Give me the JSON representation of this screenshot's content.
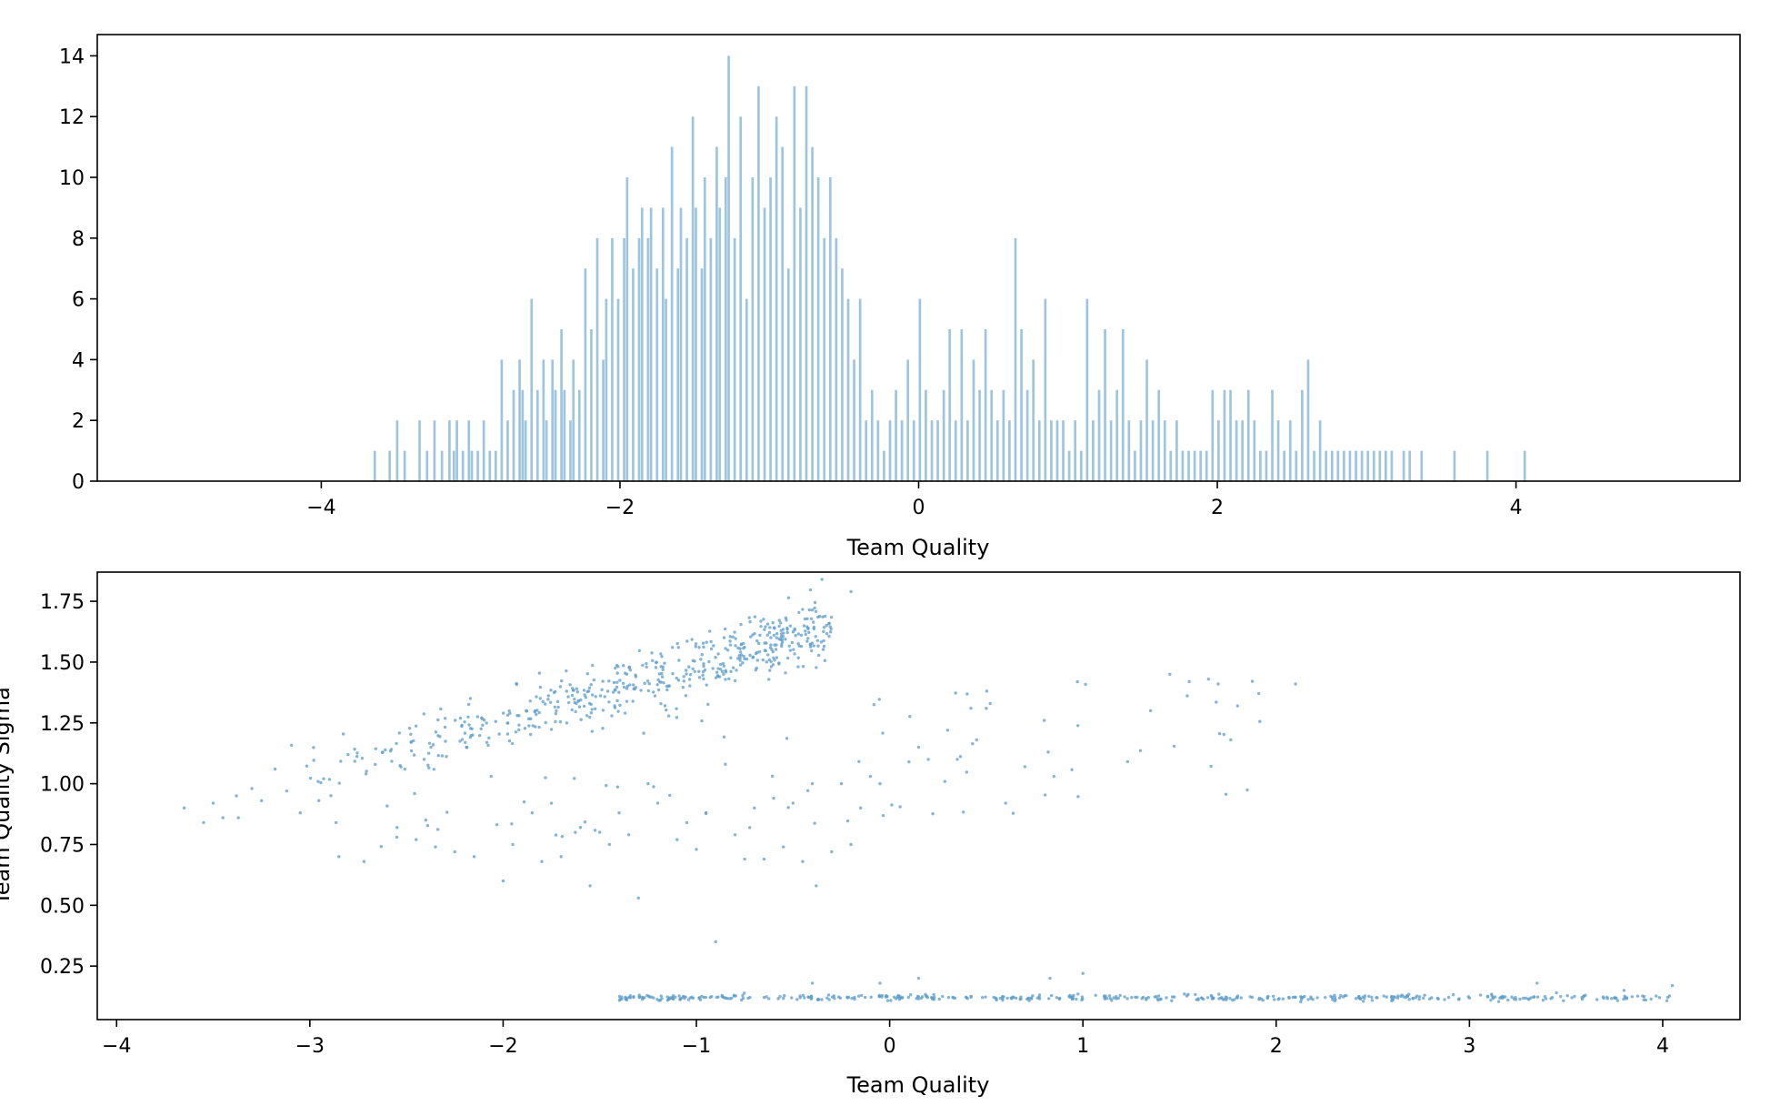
{
  "colors": {
    "bar": "#9ec5df",
    "point": "#5b9ccb",
    "axis": "#000000"
  },
  "chart_data": [
    {
      "type": "bar",
      "subtype": "histogram",
      "title": "",
      "xlabel": "Team Quality",
      "ylabel": "",
      "xlim": [
        -5.5,
        5.5
      ],
      "ylim": [
        0,
        14.7
      ],
      "xticks": [
        -4,
        -2,
        0,
        2,
        4
      ],
      "xtick_labels": [
        "−4",
        "−2",
        "0",
        "2",
        "4"
      ],
      "yticks": [
        0,
        2,
        4,
        6,
        8,
        10,
        12,
        14
      ],
      "ytick_labels": [
        "0",
        "2",
        "4",
        "6",
        "8",
        "10",
        "12",
        "14"
      ],
      "bin_start": -5.0,
      "bin_width": 0.02,
      "nonzero_bins": [
        [
          -3.65,
          1
        ],
        [
          -3.55,
          1
        ],
        [
          -3.5,
          2
        ],
        [
          -3.45,
          1
        ],
        [
          -3.35,
          2
        ],
        [
          -3.3,
          1
        ],
        [
          -3.25,
          2
        ],
        [
          -3.2,
          1
        ],
        [
          -3.15,
          2
        ],
        [
          -3.12,
          1
        ],
        [
          -3.1,
          2
        ],
        [
          -3.06,
          1
        ],
        [
          -3.02,
          2
        ],
        [
          -3.0,
          1
        ],
        [
          -2.96,
          1
        ],
        [
          -2.92,
          2
        ],
        [
          -2.88,
          1
        ],
        [
          -2.84,
          1
        ],
        [
          -2.8,
          4
        ],
        [
          -2.76,
          2
        ],
        [
          -2.72,
          3
        ],
        [
          -2.68,
          4
        ],
        [
          -2.66,
          3
        ],
        [
          -2.64,
          2
        ],
        [
          -2.6,
          6
        ],
        [
          -2.56,
          3
        ],
        [
          -2.52,
          4
        ],
        [
          -2.5,
          2
        ],
        [
          -2.46,
          4
        ],
        [
          -2.44,
          3
        ],
        [
          -2.4,
          5
        ],
        [
          -2.38,
          3
        ],
        [
          -2.34,
          2
        ],
        [
          -2.32,
          4
        ],
        [
          -2.28,
          3
        ],
        [
          -2.24,
          7
        ],
        [
          -2.2,
          5
        ],
        [
          -2.16,
          8
        ],
        [
          -2.12,
          4
        ],
        [
          -2.1,
          6
        ],
        [
          -2.06,
          8
        ],
        [
          -2.02,
          6
        ],
        [
          -1.98,
          8
        ],
        [
          -1.96,
          10
        ],
        [
          -1.92,
          7
        ],
        [
          -1.88,
          8
        ],
        [
          -1.86,
          9
        ],
        [
          -1.82,
          8
        ],
        [
          -1.8,
          9
        ],
        [
          -1.76,
          7
        ],
        [
          -1.72,
          9
        ],
        [
          -1.7,
          6
        ],
        [
          -1.66,
          11
        ],
        [
          -1.62,
          7
        ],
        [
          -1.6,
          9
        ],
        [
          -1.56,
          8
        ],
        [
          -1.52,
          12
        ],
        [
          -1.5,
          9
        ],
        [
          -1.46,
          7
        ],
        [
          -1.44,
          10
        ],
        [
          -1.4,
          8
        ],
        [
          -1.36,
          11
        ],
        [
          -1.34,
          9
        ],
        [
          -1.3,
          10
        ],
        [
          -1.28,
          14
        ],
        [
          -1.24,
          8
        ],
        [
          -1.2,
          12
        ],
        [
          -1.16,
          6
        ],
        [
          -1.12,
          10
        ],
        [
          -1.08,
          13
        ],
        [
          -1.04,
          9
        ],
        [
          -1.0,
          10
        ],
        [
          -0.96,
          12
        ],
        [
          -0.92,
          11
        ],
        [
          -0.88,
          7
        ],
        [
          -0.84,
          13
        ],
        [
          -0.8,
          9
        ],
        [
          -0.76,
          13
        ],
        [
          -0.72,
          11
        ],
        [
          -0.68,
          10
        ],
        [
          -0.64,
          8
        ],
        [
          -0.6,
          10
        ],
        [
          -0.56,
          8
        ],
        [
          -0.52,
          7
        ],
        [
          -0.48,
          6
        ],
        [
          -0.44,
          4
        ],
        [
          -0.4,
          6
        ],
        [
          -0.36,
          2
        ],
        [
          -0.32,
          3
        ],
        [
          -0.28,
          2
        ],
        [
          -0.24,
          1
        ],
        [
          -0.2,
          2
        ],
        [
          -0.16,
          3
        ],
        [
          -0.12,
          2
        ],
        [
          -0.08,
          4
        ],
        [
          -0.04,
          2
        ],
        [
          0.0,
          6
        ],
        [
          0.04,
          3
        ],
        [
          0.08,
          2
        ],
        [
          0.12,
          2
        ],
        [
          0.16,
          3
        ],
        [
          0.2,
          5
        ],
        [
          0.24,
          2
        ],
        [
          0.28,
          5
        ],
        [
          0.32,
          2
        ],
        [
          0.36,
          4
        ],
        [
          0.4,
          3
        ],
        [
          0.44,
          5
        ],
        [
          0.48,
          3
        ],
        [
          0.52,
          2
        ],
        [
          0.56,
          3
        ],
        [
          0.6,
          2
        ],
        [
          0.64,
          8
        ],
        [
          0.68,
          5
        ],
        [
          0.72,
          3
        ],
        [
          0.76,
          4
        ],
        [
          0.8,
          2
        ],
        [
          0.84,
          6
        ],
        [
          0.88,
          2
        ],
        [
          0.92,
          2
        ],
        [
          0.96,
          2
        ],
        [
          1.0,
          1
        ],
        [
          1.04,
          2
        ],
        [
          1.08,
          1
        ],
        [
          1.12,
          6
        ],
        [
          1.16,
          2
        ],
        [
          1.2,
          3
        ],
        [
          1.24,
          5
        ],
        [
          1.28,
          2
        ],
        [
          1.32,
          3
        ],
        [
          1.36,
          5
        ],
        [
          1.4,
          2
        ],
        [
          1.44,
          1
        ],
        [
          1.48,
          2
        ],
        [
          1.52,
          4
        ],
        [
          1.56,
          2
        ],
        [
          1.6,
          3
        ],
        [
          1.64,
          2
        ],
        [
          1.68,
          1
        ],
        [
          1.72,
          2
        ],
        [
          1.76,
          1
        ],
        [
          1.8,
          1
        ],
        [
          1.84,
          1
        ],
        [
          1.88,
          1
        ],
        [
          1.92,
          1
        ],
        [
          1.96,
          3
        ],
        [
          2.0,
          2
        ],
        [
          2.04,
          3
        ],
        [
          2.08,
          3
        ],
        [
          2.12,
          2
        ],
        [
          2.16,
          2
        ],
        [
          2.2,
          3
        ],
        [
          2.24,
          2
        ],
        [
          2.28,
          1
        ],
        [
          2.32,
          1
        ],
        [
          2.36,
          3
        ],
        [
          2.4,
          2
        ],
        [
          2.44,
          1
        ],
        [
          2.48,
          2
        ],
        [
          2.52,
          1
        ],
        [
          2.56,
          3
        ],
        [
          2.6,
          4
        ],
        [
          2.64,
          1
        ],
        [
          2.68,
          2
        ],
        [
          2.72,
          1
        ],
        [
          2.76,
          1
        ],
        [
          2.8,
          1
        ],
        [
          2.84,
          1
        ],
        [
          2.88,
          1
        ],
        [
          2.92,
          1
        ],
        [
          2.96,
          1
        ],
        [
          3.0,
          1
        ],
        [
          3.04,
          1
        ],
        [
          3.08,
          1
        ],
        [
          3.12,
          1
        ],
        [
          3.16,
          1
        ],
        [
          3.24,
          1
        ],
        [
          3.28,
          1
        ],
        [
          3.36,
          1
        ],
        [
          3.58,
          1
        ],
        [
          3.8,
          1
        ],
        [
          4.05,
          1
        ]
      ]
    },
    {
      "type": "scatter",
      "title": "",
      "xlabel": "Team Quality",
      "ylabel": "Team Quality Sigma",
      "xlim": [
        -4.1,
        4.4
      ],
      "ylim": [
        0.03,
        1.87
      ],
      "xticks": [
        -4,
        -3,
        -2,
        -1,
        0,
        1,
        2,
        3,
        4
      ],
      "xtick_labels": [
        "−4",
        "−3",
        "−2",
        "−1",
        "0",
        "1",
        "2",
        "3",
        "4"
      ],
      "yticks": [
        0.25,
        0.5,
        0.75,
        1.0,
        1.25,
        1.5,
        1.75
      ],
      "ytick_labels": [
        "0.25",
        "0.50",
        "0.75",
        "1.00",
        "1.25",
        "1.50",
        "1.75"
      ],
      "clusters": [
        {
          "name": "upper band",
          "x_range": [
            -3.5,
            -0.3
          ],
          "y_at_start": 0.9,
          "y_at_end": 1.65,
          "spread": 0.06,
          "count": 520
        },
        {
          "name": "middle scatter",
          "x_range": [
            -2.9,
            2.1
          ],
          "y_range": [
            0.55,
            1.45
          ],
          "count": 90
        },
        {
          "name": "lower band",
          "x_range": [
            -1.4,
            4.05
          ],
          "y_center": 0.12,
          "spread": 0.006,
          "count": 460
        }
      ],
      "points": [
        [
          -3.65,
          0.9
        ],
        [
          -3.55,
          0.84
        ],
        [
          -3.5,
          0.92
        ],
        [
          -3.45,
          0.86
        ],
        [
          -3.38,
          0.95
        ],
        [
          -3.37,
          0.86
        ],
        [
          -3.3,
          0.98
        ],
        [
          -3.25,
          0.93
        ],
        [
          -3.18,
          1.06
        ],
        [
          -3.12,
          0.97
        ],
        [
          -3.05,
          0.88
        ],
        [
          -2.85,
          0.7
        ],
        [
          -2.72,
          0.68
        ],
        [
          -2.55,
          0.78
        ],
        [
          -2.45,
          0.77
        ],
        [
          -2.4,
          0.85
        ],
        [
          -2.35,
          0.74
        ],
        [
          -2.25,
          0.72
        ],
        [
          -2.15,
          0.7
        ],
        [
          -2.0,
          0.6
        ],
        [
          -1.95,
          0.75
        ],
        [
          -1.85,
          0.88
        ],
        [
          -1.8,
          0.68
        ],
        [
          -1.75,
          0.92
        ],
        [
          -1.7,
          0.7
        ],
        [
          -1.6,
          0.82
        ],
        [
          -1.55,
          0.58
        ],
        [
          -1.5,
          0.8
        ],
        [
          -1.45,
          0.75
        ],
        [
          -1.4,
          0.88
        ],
        [
          -1.35,
          0.79
        ],
        [
          -1.3,
          0.53
        ],
        [
          -1.25,
          1.0
        ],
        [
          -1.2,
          0.92
        ],
        [
          -1.1,
          0.77
        ],
        [
          -1.05,
          0.84
        ],
        [
          -1.0,
          0.73
        ],
        [
          -0.95,
          0.88
        ],
        [
          -0.9,
          0.35
        ],
        [
          -0.85,
          1.08
        ],
        [
          -0.8,
          0.79
        ],
        [
          -0.75,
          0.69
        ],
        [
          -0.7,
          0.9
        ],
        [
          -0.65,
          0.69
        ],
        [
          -0.6,
          0.94
        ],
        [
          -0.55,
          0.74
        ],
        [
          -0.5,
          0.92
        ],
        [
          -0.45,
          0.68
        ],
        [
          -0.4,
          1.0
        ],
        [
          -0.38,
          0.58
        ],
        [
          -0.3,
          0.72
        ],
        [
          -0.25,
          1.0
        ],
        [
          -0.2,
          0.75
        ],
        [
          -0.15,
          0.9
        ],
        [
          -0.1,
          1.03
        ],
        [
          -0.05,
          1.0
        ],
        [
          0.1,
          1.09
        ],
        [
          0.15,
          1.15
        ],
        [
          0.2,
          1.1
        ],
        [
          0.3,
          1.22
        ],
        [
          0.35,
          1.1
        ],
        [
          0.45,
          1.18
        ],
        [
          0.5,
          1.31
        ],
        [
          0.52,
          1.33
        ],
        [
          0.6,
          0.92
        ],
        [
          0.7,
          1.07
        ],
        [
          0.8,
          1.26
        ],
        [
          0.82,
          1.13
        ],
        [
          0.85,
          1.03
        ],
        [
          1.35,
          1.3
        ],
        [
          1.45,
          1.45
        ],
        [
          1.55,
          1.42
        ],
        [
          1.65,
          1.43
        ],
        [
          1.7,
          1.41
        ],
        [
          1.8,
          1.32
        ],
        [
          2.1,
          1.41
        ],
        [
          -0.2,
          1.79
        ],
        [
          -0.35,
          1.84
        ],
        [
          1.0,
          0.22
        ],
        [
          0.83,
          0.2
        ],
        [
          0.15,
          0.2
        ],
        [
          -0.05,
          0.18
        ],
        [
          -0.4,
          0.18
        ],
        [
          3.35,
          0.18
        ],
        [
          4.05,
          0.17
        ],
        [
          3.8,
          0.15
        ],
        [
          3.6,
          0.13
        ],
        [
          3.45,
          0.14
        ]
      ]
    }
  ]
}
